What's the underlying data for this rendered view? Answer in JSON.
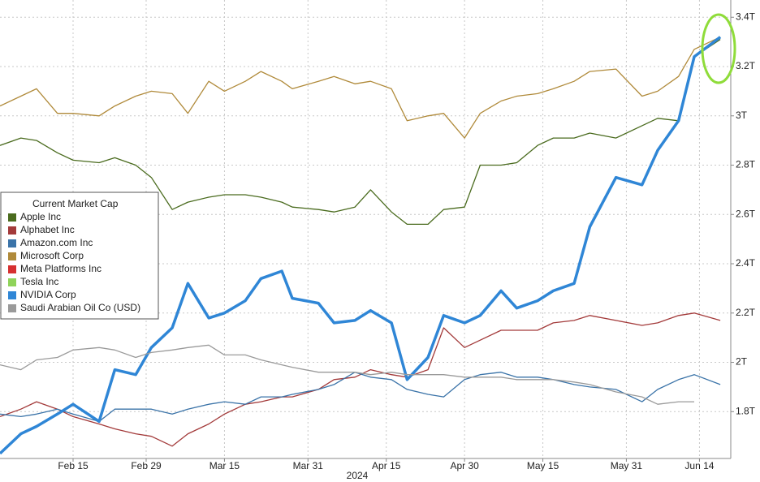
{
  "chart_data": {
    "type": "line",
    "legend_title": "Current Market Cap",
    "x": [
      "2024-02-01",
      "2024-02-05",
      "2024-02-08",
      "2024-02-12",
      "2024-02-15",
      "2024-02-20",
      "2024-02-23",
      "2024-02-27",
      "2024-03-01",
      "2024-03-05",
      "2024-03-08",
      "2024-03-12",
      "2024-03-15",
      "2024-03-19",
      "2024-03-22",
      "2024-03-26",
      "2024-03-28",
      "2024-04-02",
      "2024-04-05",
      "2024-04-09",
      "2024-04-12",
      "2024-04-16",
      "2024-04-19",
      "2024-04-23",
      "2024-04-26",
      "2024-04-30",
      "2024-05-03",
      "2024-05-07",
      "2024-05-10",
      "2024-05-14",
      "2024-05-17",
      "2024-05-21",
      "2024-05-24",
      "2024-05-29",
      "2024-06-03",
      "2024-06-06",
      "2024-06-10",
      "2024-06-13",
      "2024-06-18"
    ],
    "series": [
      {
        "name": "Apple Inc",
        "color": "#4a6b1e",
        "values": [
          2.88,
          2.91,
          2.9,
          2.85,
          2.82,
          2.81,
          2.83,
          2.8,
          2.75,
          2.62,
          2.65,
          2.67,
          2.68,
          2.68,
          2.67,
          2.65,
          2.63,
          2.62,
          2.61,
          2.63,
          2.7,
          2.61,
          2.56,
          2.56,
          2.62,
          2.63,
          2.8,
          2.8,
          2.81,
          2.88,
          2.91,
          2.91,
          2.93,
          2.91,
          2.96,
          2.99,
          2.98,
          3.24,
          3.31
        ]
      },
      {
        "name": "Alphabet Inc",
        "color": "#a33a3a",
        "values": [
          1.78,
          1.81,
          1.84,
          1.81,
          1.78,
          1.75,
          1.73,
          1.71,
          1.7,
          1.66,
          1.71,
          1.75,
          1.79,
          1.83,
          1.84,
          1.86,
          1.86,
          1.89,
          1.93,
          1.94,
          1.97,
          1.95,
          1.94,
          1.97,
          2.14,
          2.06,
          2.09,
          2.13,
          2.13,
          2.13,
          2.16,
          2.17,
          2.19,
          2.17,
          2.15,
          2.16,
          2.19,
          2.2,
          2.17
        ]
      },
      {
        "name": "Amazon.com Inc",
        "color": "#3a73a8",
        "values": [
          1.79,
          1.78,
          1.79,
          1.81,
          1.79,
          1.76,
          1.81,
          1.81,
          1.81,
          1.79,
          1.81,
          1.83,
          1.84,
          1.83,
          1.86,
          1.86,
          1.87,
          1.89,
          1.91,
          1.96,
          1.94,
          1.93,
          1.89,
          1.87,
          1.86,
          1.93,
          1.95,
          1.96,
          1.94,
          1.94,
          1.93,
          1.91,
          1.9,
          1.89,
          1.84,
          1.89,
          1.93,
          1.95,
          1.91
        ]
      },
      {
        "name": "Microsoft Corp",
        "color": "#b08a3a",
        "values": [
          3.04,
          3.08,
          3.11,
          3.01,
          3.01,
          3.0,
          3.04,
          3.08,
          3.1,
          3.09,
          3.01,
          3.14,
          3.1,
          3.14,
          3.18,
          3.14,
          3.11,
          3.14,
          3.16,
          3.13,
          3.14,
          3.11,
          2.98,
          3.0,
          3.01,
          2.91,
          3.01,
          3.06,
          3.08,
          3.09,
          3.11,
          3.14,
          3.18,
          3.19,
          3.08,
          3.1,
          3.16,
          3.27,
          3.32
        ]
      },
      {
        "name": "Meta Platforms Inc",
        "color": "#d63030",
        "values": [
          null,
          null,
          null,
          null,
          null,
          null,
          null,
          null,
          null,
          null,
          null,
          null,
          null,
          null,
          null,
          null,
          null,
          null,
          null,
          null,
          null,
          null,
          null,
          null,
          null,
          null,
          null,
          null,
          null,
          null,
          null,
          null,
          null,
          null,
          null,
          null,
          null,
          null,
          null
        ]
      },
      {
        "name": "Tesla Inc",
        "color": "#8fd35a",
        "values": [
          null,
          null,
          null,
          null,
          null,
          null,
          null,
          null,
          null,
          null,
          null,
          null,
          null,
          null,
          null,
          null,
          null,
          null,
          null,
          null,
          null,
          null,
          null,
          null,
          null,
          null,
          null,
          null,
          null,
          null,
          null,
          null,
          null,
          null,
          null,
          null,
          null,
          null,
          null
        ]
      },
      {
        "name": "NVIDIA Corp",
        "color": "#2f86d6",
        "values": [
          1.63,
          1.71,
          1.74,
          1.79,
          1.83,
          1.76,
          1.97,
          1.95,
          2.06,
          2.14,
          2.32,
          2.18,
          2.2,
          2.25,
          2.34,
          2.37,
          2.26,
          2.24,
          2.16,
          2.17,
          2.21,
          2.16,
          1.93,
          2.02,
          2.19,
          2.16,
          2.19,
          2.29,
          2.22,
          2.25,
          2.29,
          2.32,
          2.55,
          2.75,
          2.72,
          2.86,
          2.98,
          3.24,
          3.32
        ]
      },
      {
        "name": "Saudi Arabian Oil Co (USD)",
        "color": "#9a9a9a",
        "values": [
          1.99,
          1.97,
          2.01,
          2.02,
          2.05,
          2.06,
          2.05,
          2.02,
          2.04,
          2.05,
          2.06,
          2.07,
          2.03,
          2.03,
          2.01,
          1.99,
          1.98,
          1.96,
          1.96,
          1.96,
          1.95,
          1.96,
          1.95,
          1.95,
          1.95,
          1.94,
          1.94,
          1.94,
          1.93,
          1.93,
          1.93,
          1.92,
          1.91,
          1.88,
          1.86,
          1.83,
          1.84,
          1.84,
          null
        ]
      }
    ],
    "xlim": [
      "2024-02-01",
      "2024-06-20"
    ],
    "xticks": [
      {
        "value": "2024-02-15",
        "label": "Feb 15"
      },
      {
        "value": "2024-02-29",
        "label": "Feb 29"
      },
      {
        "value": "2024-03-15",
        "label": "Mar 15"
      },
      {
        "value": "2024-03-31",
        "label": "Mar 31"
      },
      {
        "value": "2024-04-15",
        "label": "Apr 15"
      },
      {
        "value": "2024-04-30",
        "label": "Apr 30"
      },
      {
        "value": "2024-05-15",
        "label": "May 15"
      },
      {
        "value": "2024-05-31",
        "label": "May 31"
      },
      {
        "value": "2024-06-14",
        "label": "Jun 14"
      }
    ],
    "xlabel": "2024",
    "ylim": [
      1.61,
      3.47
    ],
    "yticks": [
      {
        "value": 1.8,
        "label": "1.8T"
      },
      {
        "value": 2,
        "label": "2T"
      },
      {
        "value": 2.2,
        "label": "2.2T"
      },
      {
        "value": 2.4,
        "label": "2.4T"
      },
      {
        "value": 2.6,
        "label": "2.6T"
      },
      {
        "value": 2.8,
        "label": "2.8T"
      },
      {
        "value": 3,
        "label": "3T"
      },
      {
        "value": 3.2,
        "label": "3.2T"
      },
      {
        "value": 3.4,
        "label": "3.4T"
      }
    ],
    "grid": true
  }
}
